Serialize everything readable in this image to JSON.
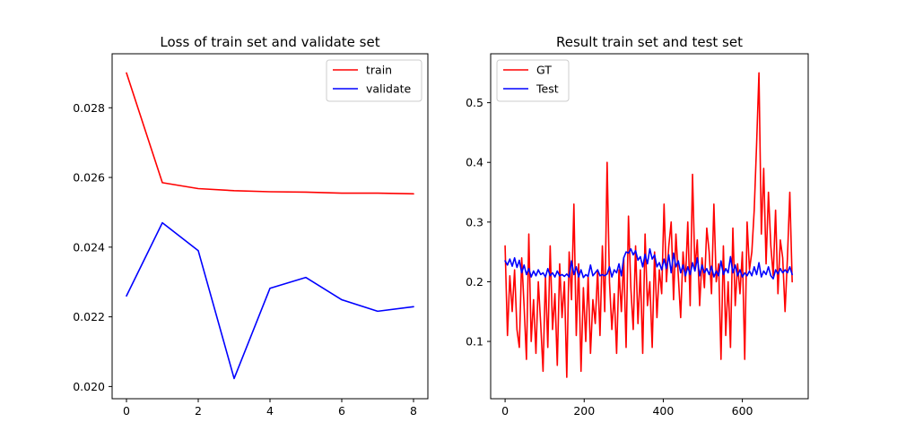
{
  "chart_data": [
    {
      "type": "line",
      "title": "Loss of train set and validate set",
      "xlabel": "",
      "ylabel": "",
      "xlim": [
        -0.4,
        8.4
      ],
      "ylim": [
        0.01965,
        0.02955
      ],
      "xticks": [
        0,
        2,
        4,
        6,
        8
      ],
      "yticks": [
        0.02,
        0.022,
        0.024,
        0.026,
        0.028
      ],
      "xtick_labels": [
        "0",
        "2",
        "4",
        "6",
        "8"
      ],
      "ytick_labels": [
        "0.020",
        "0.022",
        "0.024",
        "0.026",
        "0.028"
      ],
      "legend": "top-right",
      "grid": false,
      "series": [
        {
          "name": "train",
          "color": "#ff0000",
          "x": [
            0,
            1,
            2,
            3,
            4,
            5,
            6,
            7,
            8
          ],
          "values": [
            0.029,
            0.02585,
            0.02568,
            0.02562,
            0.02559,
            0.02558,
            0.02555,
            0.02555,
            0.02553
          ]
        },
        {
          "name": "validate",
          "color": "#0000ff",
          "x": [
            0,
            1,
            2,
            3,
            4,
            5,
            6,
            7,
            8
          ],
          "values": [
            0.0226,
            0.0247,
            0.0239,
            0.02023,
            0.02282,
            0.02313,
            0.02249,
            0.02216,
            0.02229
          ]
        }
      ]
    },
    {
      "type": "line",
      "title": "Result train set and test set",
      "xlabel": "",
      "ylabel": "",
      "xlim": [
        -36.5,
        766.5
      ],
      "ylim": [
        0.004,
        0.582
      ],
      "xticks": [
        0,
        200,
        400,
        600
      ],
      "yticks": [
        0.1,
        0.2,
        0.3,
        0.4,
        0.5
      ],
      "xtick_labels": [
        "0",
        "200",
        "400",
        "600"
      ],
      "ytick_labels": [
        "0.1",
        "0.2",
        "0.3",
        "0.4",
        "0.5"
      ],
      "legend": "top-left",
      "grid": false,
      "series": [
        {
          "name": "GT",
          "color": "#ff0000",
          "x": [
            0,
            6,
            12,
            18,
            24,
            30,
            36,
            42,
            48,
            54,
            60,
            66,
            72,
            78,
            84,
            90,
            96,
            102,
            108,
            114,
            120,
            126,
            132,
            138,
            144,
            150,
            156,
            162,
            168,
            174,
            180,
            186,
            192,
            198,
            204,
            210,
            216,
            222,
            228,
            234,
            240,
            246,
            252,
            258,
            264,
            270,
            276,
            282,
            288,
            294,
            300,
            306,
            312,
            318,
            324,
            330,
            336,
            342,
            348,
            354,
            360,
            366,
            372,
            378,
            384,
            390,
            396,
            402,
            408,
            414,
            420,
            426,
            432,
            438,
            444,
            450,
            456,
            462,
            468,
            474,
            480,
            486,
            492,
            498,
            504,
            510,
            516,
            522,
            528,
            534,
            540,
            546,
            552,
            558,
            564,
            570,
            576,
            582,
            588,
            594,
            600,
            606,
            612,
            618,
            624,
            630,
            636,
            642,
            648,
            654,
            660,
            666,
            672,
            678,
            684,
            690,
            696,
            702,
            708,
            714,
            720,
            726
          ],
          "values": [
            0.26,
            0.11,
            0.21,
            0.15,
            0.22,
            0.12,
            0.09,
            0.24,
            0.16,
            0.07,
            0.28,
            0.1,
            0.17,
            0.08,
            0.2,
            0.13,
            0.05,
            0.21,
            0.09,
            0.26,
            0.12,
            0.18,
            0.06,
            0.23,
            0.14,
            0.2,
            0.04,
            0.25,
            0.17,
            0.33,
            0.11,
            0.23,
            0.05,
            0.19,
            0.1,
            0.21,
            0.08,
            0.17,
            0.13,
            0.22,
            0.11,
            0.26,
            0.15,
            0.4,
            0.2,
            0.12,
            0.18,
            0.08,
            0.22,
            0.15,
            0.24,
            0.09,
            0.31,
            0.19,
            0.12,
            0.26,
            0.13,
            0.22,
            0.08,
            0.28,
            0.16,
            0.2,
            0.09,
            0.25,
            0.14,
            0.22,
            0.18,
            0.33,
            0.2,
            0.26,
            0.3,
            0.17,
            0.28,
            0.21,
            0.14,
            0.25,
            0.2,
            0.3,
            0.16,
            0.38,
            0.22,
            0.27,
            0.16,
            0.24,
            0.19,
            0.29,
            0.25,
            0.18,
            0.33,
            0.2,
            0.23,
            0.07,
            0.26,
            0.11,
            0.2,
            0.09,
            0.29,
            0.16,
            0.23,
            0.18,
            0.25,
            0.07,
            0.3,
            0.22,
            0.25,
            0.32,
            0.43,
            0.55,
            0.28,
            0.39,
            0.23,
            0.35,
            0.26,
            0.21,
            0.32,
            0.18,
            0.27,
            0.24,
            0.15,
            0.24,
            0.35,
            0.2
          ]
        },
        {
          "name": "Test",
          "color": "#0000ff",
          "x": [
            0,
            6,
            12,
            18,
            24,
            30,
            36,
            42,
            48,
            54,
            60,
            66,
            72,
            78,
            84,
            90,
            96,
            102,
            108,
            114,
            120,
            126,
            132,
            138,
            144,
            150,
            156,
            162,
            168,
            174,
            180,
            186,
            192,
            198,
            204,
            210,
            216,
            222,
            228,
            234,
            240,
            246,
            252,
            258,
            264,
            270,
            276,
            282,
            288,
            294,
            300,
            306,
            312,
            318,
            324,
            330,
            336,
            342,
            348,
            354,
            360,
            366,
            372,
            378,
            384,
            390,
            396,
            402,
            408,
            414,
            420,
            426,
            432,
            438,
            444,
            450,
            456,
            462,
            468,
            474,
            480,
            486,
            492,
            498,
            504,
            510,
            516,
            522,
            528,
            534,
            540,
            546,
            552,
            558,
            564,
            570,
            576,
            582,
            588,
            594,
            600,
            606,
            612,
            618,
            624,
            630,
            636,
            642,
            648,
            654,
            660,
            666,
            672,
            678,
            684,
            690,
            696,
            702,
            708,
            714,
            720,
            726
          ],
          "values": [
            0.235,
            0.228,
            0.238,
            0.226,
            0.24,
            0.224,
            0.236,
            0.215,
            0.228,
            0.212,
            0.222,
            0.208,
            0.218,
            0.21,
            0.22,
            0.212,
            0.215,
            0.208,
            0.222,
            0.21,
            0.215,
            0.208,
            0.218,
            0.21,
            0.212,
            0.209,
            0.213,
            0.208,
            0.235,
            0.212,
            0.225,
            0.208,
            0.22,
            0.207,
            0.212,
            0.209,
            0.228,
            0.21,
            0.215,
            0.22,
            0.21,
            0.212,
            0.21,
            0.213,
            0.225,
            0.208,
            0.22,
            0.215,
            0.23,
            0.21,
            0.24,
            0.25,
            0.248,
            0.255,
            0.245,
            0.252,
            0.236,
            0.242,
            0.225,
            0.246,
            0.23,
            0.255,
            0.238,
            0.245,
            0.225,
            0.232,
            0.22,
            0.238,
            0.222,
            0.245,
            0.215,
            0.248,
            0.225,
            0.235,
            0.215,
            0.228,
            0.21,
            0.225,
            0.212,
            0.232,
            0.218,
            0.24,
            0.21,
            0.228,
            0.215,
            0.222,
            0.212,
            0.226,
            0.208,
            0.218,
            0.21,
            0.235,
            0.212,
            0.222,
            0.215,
            0.242,
            0.215,
            0.228,
            0.21,
            0.22,
            0.208,
            0.215,
            0.21,
            0.218,
            0.21,
            0.225,
            0.212,
            0.232,
            0.208,
            0.218,
            0.212,
            0.225,
            0.21,
            0.205,
            0.22,
            0.213,
            0.222,
            0.215,
            0.22,
            0.215,
            0.225,
            0.212
          ]
        }
      ]
    }
  ]
}
